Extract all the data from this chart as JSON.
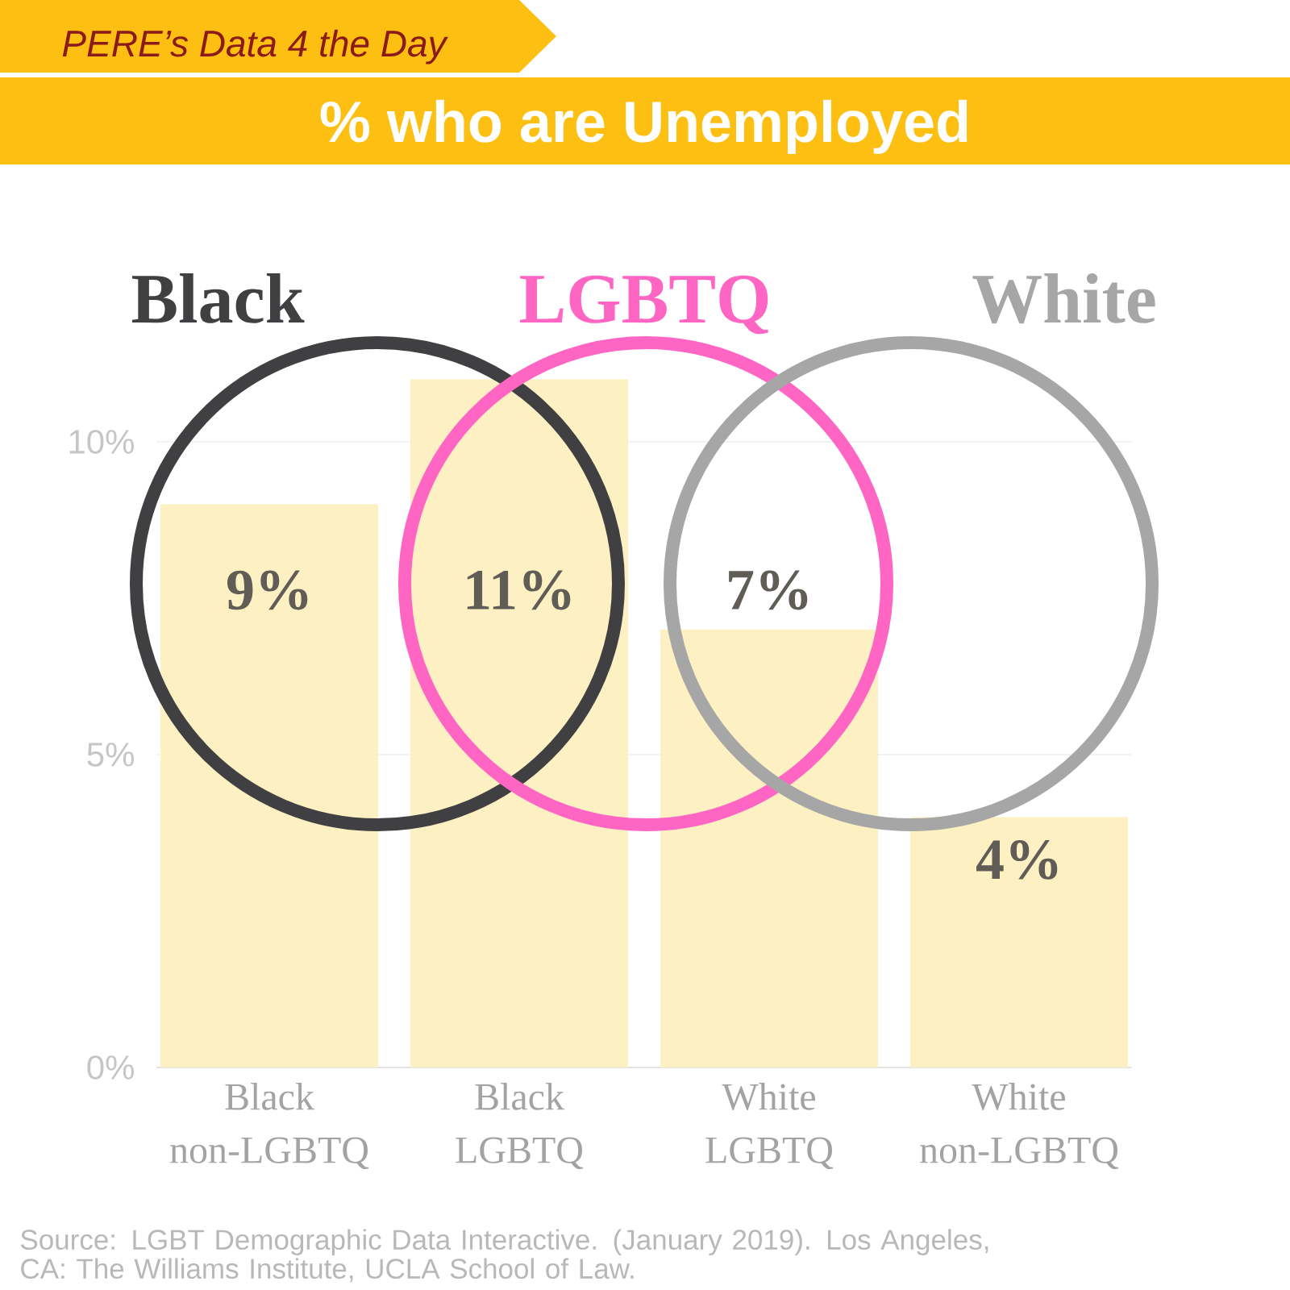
{
  "chart_data": {
    "type": "bar",
    "title": "% who are Unemployed",
    "subtitle": "PERE’s Data 4 the Day",
    "categories": [
      "Black non-LGBTQ",
      "Black LGBTQ",
      "White LGBTQ",
      "White non-LGBTQ"
    ],
    "values": [
      9,
      11,
      7,
      4
    ],
    "color": "#fdf0c2",
    "value_labels": [
      "9%",
      "11%",
      "7%",
      "4%"
    ],
    "ylim": [
      0,
      11
    ],
    "yticks": [
      {
        "value": 0,
        "label": "0%"
      },
      {
        "value": 5,
        "label": "5%"
      },
      {
        "value": 10,
        "label": "10%"
      }
    ],
    "grid": "y",
    "annotations": [
      "Black",
      "LGBTQ",
      "White",
      "Source: LGBT Demographic Data Interactive. (January 2019). Los Angeles, CA: The Williams Institute, UCLA School of Law."
    ]
  }
}
